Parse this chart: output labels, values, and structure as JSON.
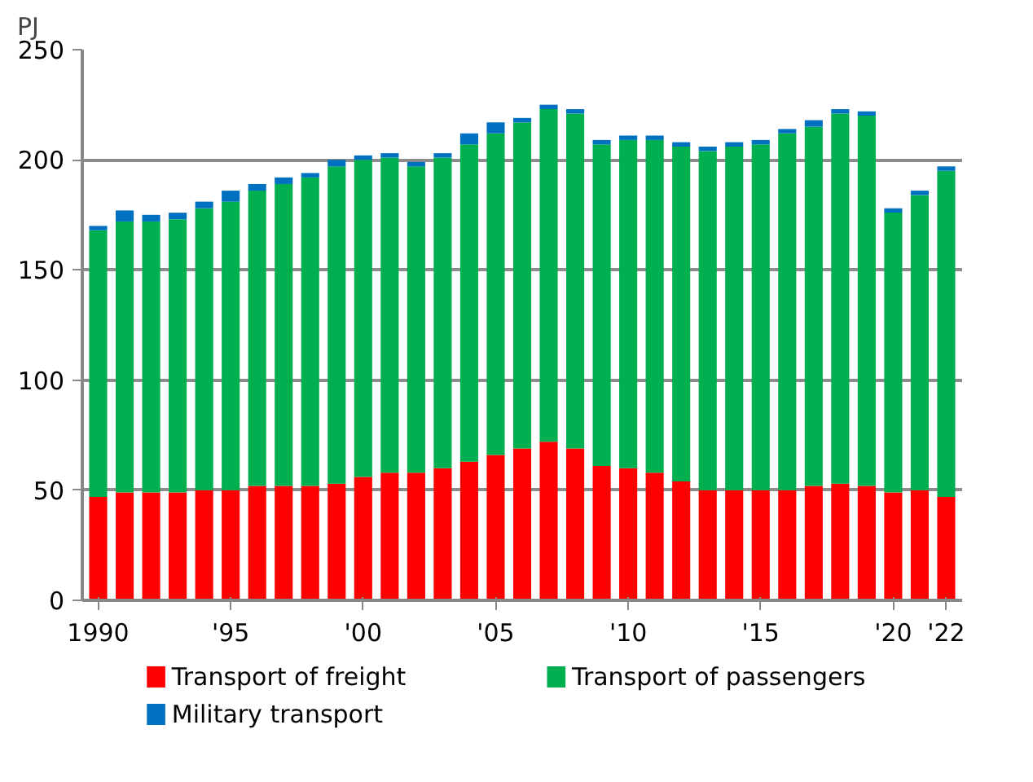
{
  "chart_data": {
    "type": "bar",
    "stacked": true,
    "ylabel": "PJ",
    "categories": [
      "1990",
      null,
      null,
      null,
      null,
      "'95",
      null,
      null,
      null,
      null,
      "'00",
      null,
      null,
      null,
      null,
      "'05",
      null,
      null,
      null,
      null,
      "'10",
      null,
      null,
      null,
      null,
      "'15",
      null,
      null,
      null,
      null,
      "'20",
      null,
      "'22"
    ],
    "series": [
      {
        "name": "Transport of freight",
        "color": "#ff0000",
        "values": [
          47,
          49,
          49,
          49,
          50,
          50,
          52,
          52,
          52,
          53,
          56,
          58,
          58,
          60,
          63,
          66,
          69,
          72,
          69,
          61,
          60,
          58,
          54,
          50,
          50,
          50,
          50,
          52,
          53,
          52,
          49,
          50,
          47
        ]
      },
      {
        "name": "Transport of passengers",
        "color": "#00b050",
        "values": [
          121,
          123,
          123,
          124,
          128,
          131,
          134,
          137,
          140,
          144,
          144,
          143,
          139,
          141,
          144,
          146,
          148,
          151,
          152,
          146,
          149,
          151,
          152,
          154,
          156,
          157,
          162,
          163,
          168,
          168,
          127,
          134,
          148
        ]
      },
      {
        "name": "Military transport",
        "color": "#0070c0",
        "values": [
          2,
          5,
          3,
          3,
          3,
          5,
          3,
          3,
          2,
          3,
          2,
          2,
          2,
          2,
          5,
          5,
          2,
          2,
          2,
          2,
          2,
          2,
          2,
          2,
          2,
          2,
          2,
          3,
          2,
          2,
          2,
          2,
          2
        ]
      }
    ],
    "ylim": [
      0,
      250
    ],
    "yticks": [
      0,
      50,
      100,
      150,
      200,
      250
    ],
    "grid": "y",
    "legend": "bottom"
  }
}
